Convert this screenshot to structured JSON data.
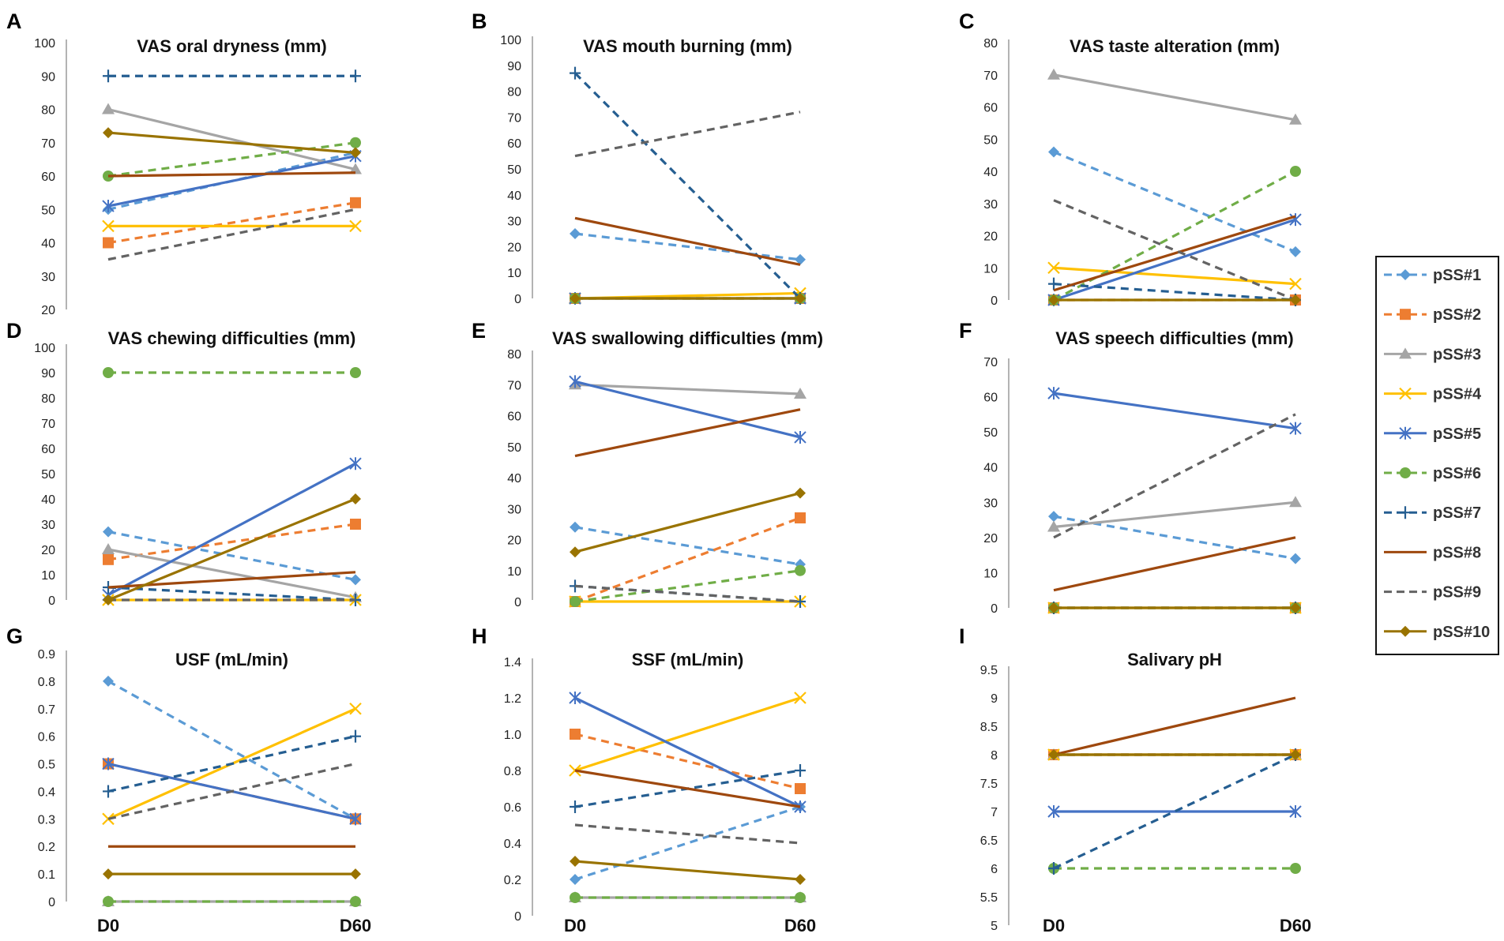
{
  "chart_data": {
    "type": "line",
    "x_labels": [
      "D0",
      "D60"
    ],
    "series_names": [
      "pSS#1",
      "pSS#2",
      "pSS#3",
      "pSS#4",
      "pSS#5",
      "pSS#6",
      "pSS#7",
      "pSS#8",
      "pSS#9",
      "pSS#10"
    ],
    "series_styles": [
      {
        "name": "pSS#1",
        "color": "#5B9BD5",
        "dash": "dashed",
        "marker": "diamond"
      },
      {
        "name": "pSS#2",
        "color": "#ED7D31",
        "dash": "dashed",
        "marker": "square"
      },
      {
        "name": "pSS#3",
        "color": "#A5A5A5",
        "dash": "solid",
        "marker": "triangle"
      },
      {
        "name": "pSS#4",
        "color": "#FFC000",
        "dash": "solid",
        "marker": "x"
      },
      {
        "name": "pSS#5",
        "color": "#4472C4",
        "dash": "solid",
        "marker": "star"
      },
      {
        "name": "pSS#6",
        "color": "#70AD47",
        "dash": "dashed",
        "marker": "circle"
      },
      {
        "name": "pSS#7",
        "color": "#255E91",
        "dash": "dashed",
        "marker": "plus"
      },
      {
        "name": "pSS#8",
        "color": "#9E480E",
        "dash": "solid",
        "marker": "none"
      },
      {
        "name": "pSS#9",
        "color": "#636363",
        "dash": "dashed",
        "marker": "none"
      },
      {
        "name": "pSS#10",
        "color": "#997300",
        "dash": "solid",
        "marker": "diamond"
      }
    ],
    "panels": [
      {
        "letter": "A",
        "title": "VAS oral dryness (mm)",
        "ylim": [
          20,
          100
        ],
        "ticks": [
          "20",
          "30",
          "40",
          "50",
          "60",
          "70",
          "80",
          "90",
          "100"
        ],
        "show_x": false,
        "values": [
          [
            50,
            67
          ],
          [
            40,
            52
          ],
          [
            80,
            62
          ],
          [
            45,
            45
          ],
          [
            51,
            66
          ],
          [
            60,
            70
          ],
          [
            90,
            90
          ],
          [
            60,
            61
          ],
          [
            35,
            50
          ],
          [
            73,
            67
          ]
        ]
      },
      {
        "letter": "B",
        "title": "VAS mouth burning (mm)",
        "ylim": [
          0,
          100
        ],
        "ticks": [
          "0",
          "10",
          "20",
          "30",
          "40",
          "50",
          "60",
          "70",
          "80",
          "90",
          "100"
        ],
        "show_x": false,
        "values": [
          [
            25,
            15
          ],
          [
            0,
            0
          ],
          [
            0,
            0
          ],
          [
            0,
            2
          ],
          [
            0,
            0
          ],
          [
            0,
            0
          ],
          [
            87,
            0
          ],
          [
            31,
            13
          ],
          [
            55,
            72
          ],
          [
            0,
            0
          ]
        ]
      },
      {
        "letter": "C",
        "title": "VAS taste alteration (mm)",
        "ylim": [
          0,
          80
        ],
        "ticks": [
          "0",
          "10",
          "20",
          "30",
          "40",
          "50",
          "60",
          "70",
          "80"
        ],
        "show_x": false,
        "values": [
          [
            46,
            15
          ],
          [
            0,
            0
          ],
          [
            70,
            56
          ],
          [
            10,
            5
          ],
          [
            0,
            25
          ],
          [
            0,
            40
          ],
          [
            5,
            0
          ],
          [
            3,
            26
          ],
          [
            31,
            0
          ],
          [
            0,
            0
          ]
        ]
      },
      {
        "letter": "D",
        "title": "VAS chewing difficulties (mm)",
        "ylim": [
          0,
          100
        ],
        "ticks": [
          "0",
          "10",
          "20",
          "30",
          "40",
          "50",
          "60",
          "70",
          "80",
          "90",
          "100"
        ],
        "show_x": false,
        "values": [
          [
            27,
            8
          ],
          [
            16,
            30
          ],
          [
            20,
            1
          ],
          [
            0,
            0
          ],
          [
            2,
            54
          ],
          [
            90,
            90
          ],
          [
            5,
            0
          ],
          [
            5,
            11
          ],
          [
            0,
            0
          ],
          [
            0,
            40
          ]
        ]
      },
      {
        "letter": "E",
        "title": "VAS swallowing difficulties (mm)",
        "ylim": [
          0,
          80
        ],
        "ticks": [
          "0",
          "10",
          "20",
          "30",
          "40",
          "50",
          "60",
          "70",
          "80"
        ],
        "show_x": false,
        "values": [
          [
            24,
            12
          ],
          [
            0,
            27
          ],
          [
            70,
            67
          ],
          [
            0,
            0
          ],
          [
            71,
            53
          ],
          [
            0,
            10
          ],
          [
            5,
            0
          ],
          [
            47,
            62
          ],
          [
            5,
            0
          ],
          [
            16,
            35
          ]
        ]
      },
      {
        "letter": "F",
        "title": "VAS speech difficulties (mm)",
        "ylim": [
          0,
          70
        ],
        "ticks": [
          "0",
          "10",
          "20",
          "30",
          "40",
          "50",
          "60",
          "70"
        ],
        "show_x": false,
        "values": [
          [
            26,
            14
          ],
          [
            0,
            0
          ],
          [
            23,
            30
          ],
          [
            0,
            0
          ],
          [
            61,
            51
          ],
          [
            0,
            0
          ],
          [
            0,
            0
          ],
          [
            5,
            20
          ],
          [
            20,
            55
          ],
          [
            0,
            0
          ]
        ]
      },
      {
        "letter": "G",
        "title": "USF (mL/min)",
        "ylim": [
          0,
          0.9
        ],
        "ticks": [
          "0",
          "0.1",
          "0.2",
          "0.3",
          "0.4",
          "0.5",
          "0.6",
          "0.7",
          "0.8",
          "0.9"
        ],
        "show_x": true,
        "values": [
          [
            0.8,
            0.3
          ],
          [
            0.5,
            0.3
          ],
          [
            0,
            0
          ],
          [
            0.3,
            0.7
          ],
          [
            0.5,
            0.3
          ],
          [
            0,
            0
          ],
          [
            0.4,
            0.6
          ],
          [
            0.2,
            0.2
          ],
          [
            0.3,
            0.5
          ],
          [
            0.1,
            0.1
          ]
        ]
      },
      {
        "letter": "H",
        "title": "SSF (mL/min)",
        "ylim": [
          0,
          1.4
        ],
        "ticks": [
          "0",
          "0.2",
          "0.4",
          "0.6",
          "0.8",
          "1.0",
          "1.2",
          "1.4"
        ],
        "show_x": true,
        "values": [
          [
            0.2,
            0.6
          ],
          [
            1.0,
            0.7
          ],
          [
            0.1,
            0.1
          ],
          [
            0.8,
            1.2
          ],
          [
            1.2,
            0.6
          ],
          [
            0.1,
            0.1
          ],
          [
            0.6,
            0.8
          ],
          [
            0.8,
            0.6
          ],
          [
            0.5,
            0.4
          ],
          [
            0.3,
            0.2
          ]
        ]
      },
      {
        "letter": "I",
        "title": "Salivary pH",
        "ylim": [
          5,
          9.5
        ],
        "ticks": [
          "5",
          "5.5",
          "6",
          "6.5",
          "7",
          "7.5",
          "8",
          "8.5",
          "9",
          "9.5"
        ],
        "show_x": true,
        "values": [
          [
            8,
            8
          ],
          [
            8,
            8
          ],
          [
            8,
            8
          ],
          [
            8,
            8
          ],
          [
            7,
            7
          ],
          [
            6,
            6
          ],
          [
            6,
            8
          ],
          [
            8,
            9
          ],
          [
            8,
            8
          ],
          [
            8,
            8
          ]
        ]
      }
    ]
  }
}
